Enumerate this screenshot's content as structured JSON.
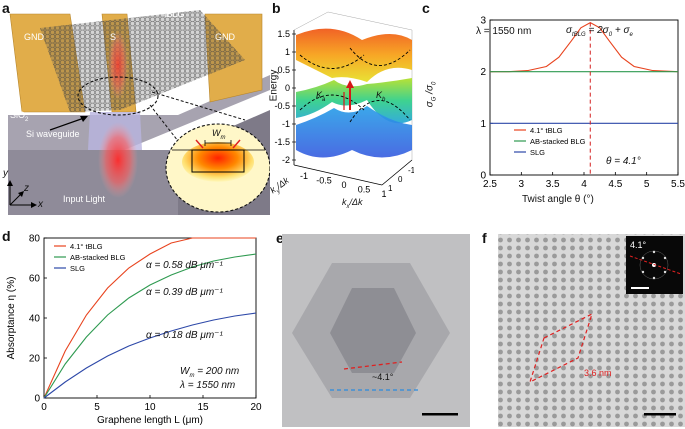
{
  "panels": {
    "a": {
      "letter": "a",
      "labels": {
        "gnd_left": "GND",
        "signal": "S",
        "gnd_right": "GND",
        "material": "tBLG",
        "substrate": "SiO",
        "substrate_sub": "2",
        "waveguide": "Si waveguide",
        "input": "Input Light",
        "width": "W",
        "width_sub": "m"
      },
      "axes": {
        "y": "y",
        "z": "z",
        "x": "x"
      },
      "colors": {
        "gold": "#e1ad4a",
        "substrate": "#8c8895",
        "beam": "#ff3030"
      }
    },
    "b": {
      "letter": "b",
      "ylabel": "Energy",
      "xlabel_main": "k",
      "xlabel_sub": "x",
      "xlabel_tail": "/Δk",
      "depth_label_main": "k",
      "depth_label_sub": "y",
      "depth_label_tail": "/Δk",
      "valley_a_main": "K",
      "valley_a_sub": "a",
      "valley_b_main": "K",
      "valley_b_sub": "b",
      "yticks": [
        "1.5",
        "1",
        "0.5",
        "0",
        "-0.5",
        "-1",
        "-1.5",
        "-2"
      ],
      "xticks": [
        "-1",
        "-0.5",
        "0",
        "0.5",
        "1"
      ],
      "dticks": [
        "1",
        "0",
        "-1"
      ]
    },
    "c": {
      "letter": "c",
      "condition": "λ = 1550 nm",
      "formula_main": "σ",
      "formula_sub": "tBLG",
      "formula_tail": " = 2σ",
      "formula_sub2": "0",
      "formula_tail2": " + σ",
      "formula_sub3": "e",
      "theta_label": "θ = 4.1°",
      "ylabel_main": "σ",
      "ylabel_sub": "G",
      "ylabel_mid": " /σ",
      "ylabel_sub2": "0",
      "xlabel": "Twist angle  θ (°)"
    },
    "d": {
      "letter": "d",
      "annotations": {
        "a1": "α = 0.58 dB μm⁻¹",
        "a2": "α = 0.39 dB μm⁻¹",
        "a3": "α = 0.18 dB μm⁻¹",
        "wm_main": "W",
        "wm_sub": "m",
        "wm_tail": " = 200 nm",
        "lambda": "λ = 1550 nm"
      }
    },
    "e": {
      "letter": "e",
      "angle_label": "~4.1°"
    },
    "f": {
      "letter": "f",
      "inset_angle": "4.1°",
      "period": "3.6 nm"
    }
  },
  "chart_data": [
    {
      "type": "line",
      "panel": "c",
      "xlabel": "Twist angle θ (°)",
      "ylabel": "σG /σ0",
      "xlim": [
        2.5,
        5.5
      ],
      "ylim": [
        0,
        3
      ],
      "xticks": [
        2.5,
        3,
        3.5,
        4,
        4.5,
        5,
        5.5
      ],
      "yticks": [
        0,
        1,
        2,
        3
      ],
      "legend_position": "bottom-left",
      "series": [
        {
          "name": "4.1° tBLG",
          "color": "#e8431e",
          "x": [
            2.5,
            2.8,
            3.1,
            3.4,
            3.6,
            3.8,
            3.95,
            4.1,
            4.25,
            4.4,
            4.6,
            4.8,
            5.1,
            5.5
          ],
          "y": [
            2.0,
            2.0,
            2.02,
            2.1,
            2.28,
            2.6,
            2.85,
            2.95,
            2.85,
            2.6,
            2.28,
            2.1,
            2.02,
            2.0
          ]
        },
        {
          "name": "AB-stacked BLG",
          "color": "#2e9a50",
          "x": [
            2.5,
            5.5
          ],
          "y": [
            2.0,
            2.0
          ]
        },
        {
          "name": "SLG",
          "color": "#2d48a8",
          "x": [
            2.5,
            5.5
          ],
          "y": [
            1.0,
            1.0
          ]
        }
      ],
      "annotations": [
        {
          "x": 4.1,
          "text": "θ = 4.1°"
        }
      ]
    },
    {
      "type": "line",
      "panel": "d",
      "xlabel": "Graphene length L (μm)",
      "ylabel": "Absorptance η (%)",
      "xlim": [
        0,
        20
      ],
      "ylim": [
        0,
        80
      ],
      "xticks": [
        0,
        5,
        10,
        15,
        20
      ],
      "yticks": [
        0,
        20,
        40,
        60,
        80
      ],
      "legend_position": "top-left",
      "series": [
        {
          "name": "4.1° tBLG",
          "color": "#e8431e",
          "x": [
            0,
            2,
            4,
            6,
            8,
            10,
            12,
            14,
            16,
            18,
            20
          ],
          "y": [
            0,
            23.5,
            41.5,
            55,
            65,
            72,
            77.5,
            81,
            83.5,
            85.5,
            87
          ]
        },
        {
          "name": "AB-stacked BLG",
          "color": "#2e9a50",
          "x": [
            0,
            2,
            4,
            6,
            8,
            10,
            12,
            14,
            16,
            18,
            20
          ],
          "y": [
            0,
            17,
            30.5,
            41.5,
            50,
            56.5,
            61.5,
            65.5,
            68.5,
            70.5,
            72
          ]
        },
        {
          "name": "SLG",
          "color": "#2d48a8",
          "x": [
            0,
            2,
            4,
            6,
            8,
            10,
            12,
            14,
            16,
            18,
            20
          ],
          "y": [
            0,
            8,
            15,
            21,
            26,
            30,
            33.5,
            36.5,
            39,
            41,
            42.5
          ]
        }
      ]
    }
  ]
}
